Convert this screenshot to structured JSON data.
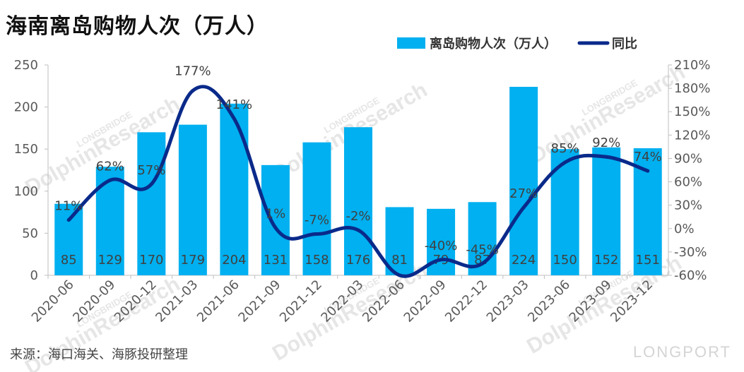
{
  "title": "海南离岛购物人次（万人）",
  "source": "来源：海口海关、海豚投研整理",
  "watermarks": {
    "longbridge": "LONGBRIDGE",
    "dolphin": "DolphinResearch",
    "longport": "LONGPORT"
  },
  "colors": {
    "bar": "#00b0f0",
    "line": "#0a2a8a"
  },
  "chart_data": {
    "type": "bar+line",
    "categories": [
      "2020-06",
      "2020-09",
      "2020-12",
      "2021-03",
      "2021-06",
      "2021-09",
      "2021-12",
      "2022-03",
      "2022-06",
      "2022-09",
      "2022-12",
      "2023-03",
      "2023-06",
      "2023-09",
      "2023-12"
    ],
    "series": [
      {
        "name": "离岛购物人次（万人）",
        "type": "bar",
        "axis": "left",
        "values": [
          85,
          129,
          170,
          179,
          204,
          131,
          158,
          176,
          81,
          79,
          87,
          224,
          150,
          152,
          151
        ],
        "labels": [
          "85",
          "129",
          "170",
          "179",
          "204",
          "131",
          "158",
          "176",
          "81",
          "79",
          "87",
          "224",
          "150",
          "152",
          "151"
        ]
      },
      {
        "name": "同比",
        "type": "line",
        "axis": "right",
        "values": [
          11,
          62,
          57,
          177,
          141,
          1,
          -7,
          -2,
          -60,
          -40,
          -45,
          27,
          85,
          92,
          74
        ],
        "labels": [
          "11%",
          "62%",
          "57%",
          "177%",
          "141%",
          "1%",
          "-7%",
          "-2%",
          "",
          "-40%",
          "-45%",
          "27%",
          "85%",
          "92%",
          "74%"
        ]
      }
    ],
    "y_left": {
      "min": 0,
      "max": 250,
      "step": 50,
      "ticks": [
        "0",
        "50",
        "100",
        "150",
        "200",
        "250"
      ]
    },
    "y_right": {
      "min": -60,
      "max": 210,
      "step": 30,
      "ticks": [
        "-60%",
        "-30%",
        "0%",
        "30%",
        "60%",
        "90%",
        "120%",
        "150%",
        "180%",
        "210%"
      ]
    },
    "grid": false,
    "legend_position": "top-right"
  }
}
